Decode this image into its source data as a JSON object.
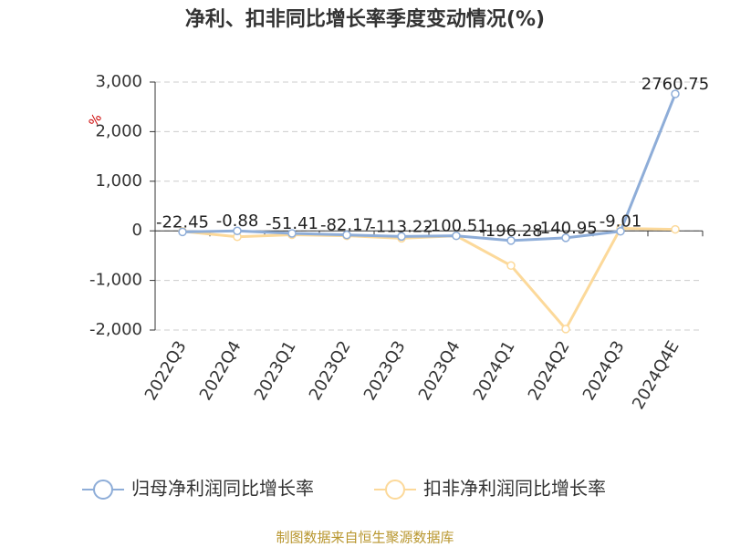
{
  "chart_data": {
    "type": "line",
    "title": "净利、扣非同比增长率季度变动情况(%)",
    "y_label": "%",
    "source": "制图数据来自恒生聚源数据库",
    "categories": [
      "2022Q3",
      "2022Q4",
      "2023Q1",
      "2023Q2",
      "2023Q3",
      "2023Q4",
      "2024Q1",
      "2024Q2",
      "2024Q3",
      "2024Q4E"
    ],
    "series": [
      {
        "name": "归母净利润同比增长率",
        "color": "#8eadd8",
        "show_labels": true,
        "values": [
          -22.45,
          -0.88,
          -51.41,
          -82.17,
          -113.22,
          -100.51,
          -196.28,
          -140.95,
          -9.01,
          2760.75
        ]
      },
      {
        "name": "扣非净利润同比增长率",
        "color": "#fcd99a",
        "show_labels": false,
        "values": [
          -10,
          -120,
          -80,
          -100,
          -150,
          -100,
          -700,
          -1980,
          50,
          30
        ]
      }
    ],
    "ylim": [
      -2000,
      3000
    ],
    "yticks": [
      {
        "value": -2000,
        "label": "-2,000"
      },
      {
        "value": -1000,
        "label": "-1,000"
      },
      0,
      {
        "value": 1000,
        "label": "1,000"
      },
      {
        "value": 2000,
        "label": "2,000"
      },
      {
        "value": 3000,
        "label": "3,000"
      }
    ],
    "grid": true
  }
}
